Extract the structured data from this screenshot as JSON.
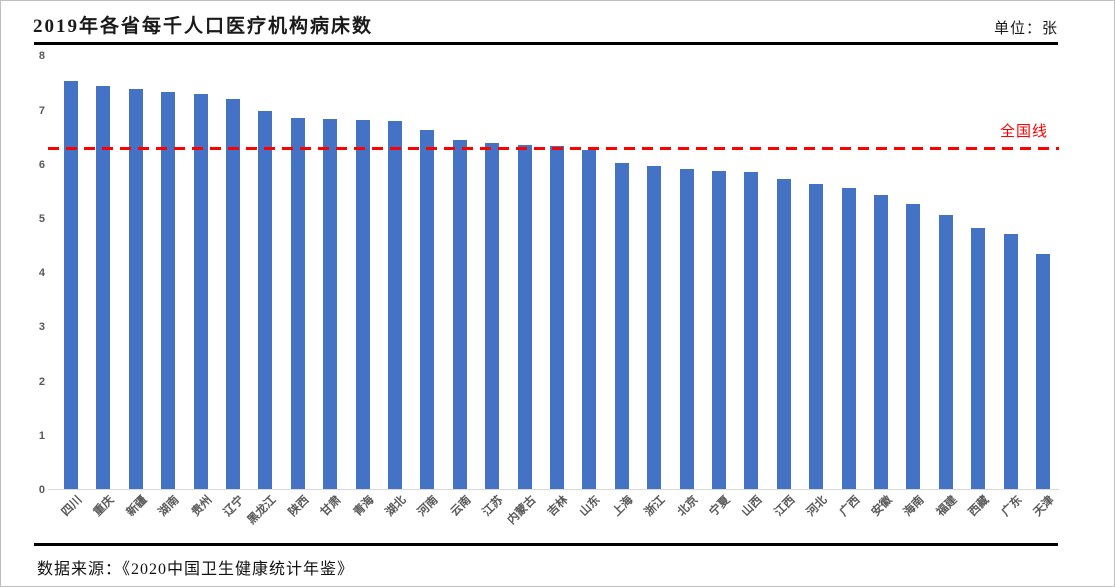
{
  "page": {
    "title": "2019年各省每千人口医疗机构病床数",
    "unit_label": "单位：张",
    "source_label": "数据来源：《2020中国卫生健康统计年鉴》"
  },
  "chart_data": {
    "type": "bar",
    "title": "2019年各省每千人口医疗机构病床数",
    "unit": "张",
    "categories": [
      "四川",
      "重庆",
      "新疆",
      "湖南",
      "贵州",
      "辽宁",
      "黑龙江",
      "陕西",
      "甘肃",
      "青海",
      "湖北",
      "河南",
      "云南",
      "江苏",
      "内蒙古",
      "吉林",
      "山东",
      "上海",
      "浙江",
      "北京",
      "宁夏",
      "山西",
      "江西",
      "河北",
      "广西",
      "安徽",
      "海南",
      "福建",
      "西藏",
      "广东",
      "天津"
    ],
    "values": [
      7.55,
      7.45,
      7.4,
      7.34,
      7.31,
      7.22,
      7.0,
      6.87,
      6.85,
      6.83,
      6.8,
      6.65,
      6.45,
      6.4,
      6.36,
      6.35,
      6.27,
      6.04,
      5.98,
      5.93,
      5.89,
      5.86,
      5.73,
      5.65,
      5.58,
      5.45,
      5.27,
      5.08,
      4.84,
      4.73,
      4.36
    ],
    "reference_line": {
      "label": "全国线",
      "value": 6.3,
      "color": "#FF0000",
      "style": "dashed"
    },
    "ylim": [
      0,
      8
    ],
    "yticks": [
      0,
      1,
      2,
      3,
      4,
      5,
      6,
      7,
      8
    ],
    "bar_color": "#4472C4",
    "axis_text_color": "#595959",
    "grid": false,
    "x_label_rotation": 45,
    "legend": "none"
  }
}
